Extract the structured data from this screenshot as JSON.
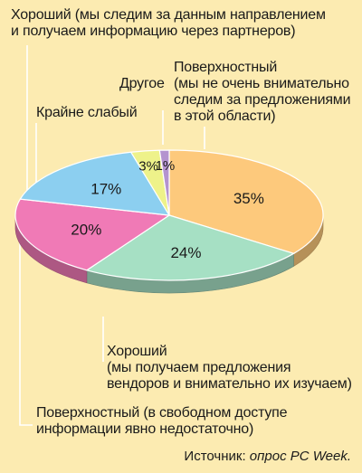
{
  "chart_data": {
    "type": "pie",
    "unit": "%",
    "slices": [
      {
        "label_line1": "Поверхностный",
        "label_line2": "(мы не очень внимательно",
        "label_line3": "следим за предложениями",
        "label_line4": "в этой области)",
        "value": 35,
        "display": "35%",
        "color": "#fdc97c"
      },
      {
        "label_line1": "Хороший",
        "label_line2": "(мы получаем предложения",
        "label_line3": "вендоров и внимательно их изучаем)",
        "label_line4": "",
        "value": 24,
        "display": "24%",
        "color": "#a6e0c4"
      },
      {
        "label_line1": "Поверхностный (в свободном доступе",
        "label_line2": "информации явно недостаточно)",
        "label_line3": "",
        "label_line4": "",
        "value": 20,
        "display": "20%",
        "color": "#f07ab6"
      },
      {
        "label_line1": "Хороший (мы следим за данным направлением",
        "label_line2": "и получаем информацию через партнеров)",
        "label_line3": "",
        "label_line4": "",
        "value": 17,
        "display": "17%",
        "color": "#8ccff0"
      },
      {
        "label_line1": "Крайне слабый",
        "label_line2": "",
        "label_line3": "",
        "label_line4": "",
        "value": 3,
        "display": "3%",
        "color": "#eef28a"
      },
      {
        "label_line1": "Другое",
        "label_line2": "",
        "label_line3": "",
        "label_line4": "",
        "value": 1,
        "display": "1%",
        "color": "#b493cf"
      }
    ]
  },
  "source": {
    "prefix": "Источник:",
    "name": "опрос PC Week."
  }
}
